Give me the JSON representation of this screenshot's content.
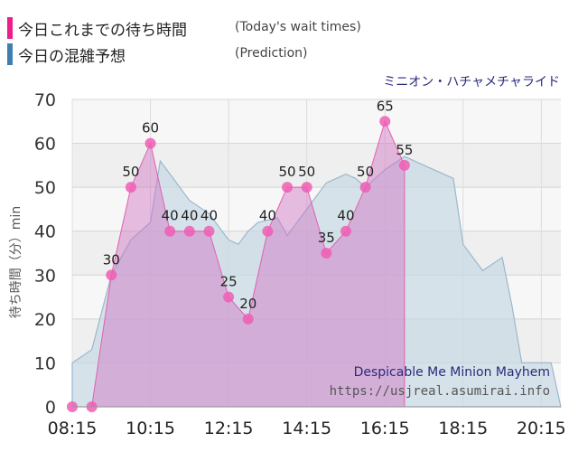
{
  "legend": {
    "today": {
      "label": "今日これまでの待ち時間",
      "note": "(Today's wait times)",
      "color": "#ee1c8c"
    },
    "prediction": {
      "label": "今日の混雑予想",
      "note": "(Prediction)",
      "color": "#3e7fb0"
    }
  },
  "ride_name": "ミニオン・ハチャメチャライド",
  "chart_data": {
    "type": "area",
    "ylabel": "待ち時間（分）min",
    "ylim": [
      0,
      70
    ],
    "yticks": [
      0,
      10,
      20,
      30,
      40,
      50,
      60,
      70
    ],
    "x_tick_labels": [
      "08:15",
      "10:15",
      "12:15",
      "14:15",
      "16:15",
      "18:15",
      "20:15"
    ],
    "grid": true,
    "watermark": {
      "attraction": "Despicable Me Minion Mayhem",
      "url": "https://usjreal.asumirai.info"
    },
    "series": [
      {
        "name": "今日これまでの待ち時間",
        "color": "#ee1c8c",
        "points": [
          [
            "08:15",
            0
          ],
          [
            "08:45",
            0
          ],
          [
            "09:15",
            30
          ],
          [
            "09:45",
            50
          ],
          [
            "10:15",
            60
          ],
          [
            "10:45",
            40
          ],
          [
            "11:15",
            40
          ],
          [
            "11:45",
            40
          ],
          [
            "12:15",
            25
          ],
          [
            "12:45",
            20
          ],
          [
            "13:15",
            40
          ],
          [
            "13:45",
            50
          ],
          [
            "14:15",
            50
          ],
          [
            "14:45",
            35
          ],
          [
            "15:15",
            40
          ],
          [
            "15:45",
            50
          ],
          [
            "16:15",
            65
          ],
          [
            "16:45",
            55
          ]
        ]
      },
      {
        "name": "今日の混雑予想",
        "color": "#9ab8cc",
        "points": [
          [
            "08:15",
            10
          ],
          [
            "08:45",
            13
          ],
          [
            "09:15",
            30
          ],
          [
            "09:45",
            38
          ],
          [
            "10:15",
            42
          ],
          [
            "10:30",
            56
          ],
          [
            "11:00",
            50
          ],
          [
            "11:15",
            47
          ],
          [
            "11:45",
            44
          ],
          [
            "12:15",
            38
          ],
          [
            "12:30",
            37
          ],
          [
            "12:45",
            40
          ],
          [
            "13:00",
            42
          ],
          [
            "13:30",
            43
          ],
          [
            "13:45",
            39
          ],
          [
            "14:15",
            45
          ],
          [
            "14:45",
            51
          ],
          [
            "15:15",
            53
          ],
          [
            "15:30",
            52
          ],
          [
            "15:45",
            50
          ],
          [
            "16:15",
            54
          ],
          [
            "16:45",
            57
          ],
          [
            "17:15",
            55
          ],
          [
            "17:45",
            53
          ],
          [
            "18:00",
            52
          ],
          [
            "18:15",
            37
          ],
          [
            "18:45",
            31
          ],
          [
            "19:15",
            34
          ],
          [
            "19:30",
            23
          ],
          [
            "19:45",
            10
          ],
          [
            "20:15",
            10
          ],
          [
            "20:30",
            10
          ],
          [
            "20:45",
            0
          ]
        ]
      }
    ]
  }
}
